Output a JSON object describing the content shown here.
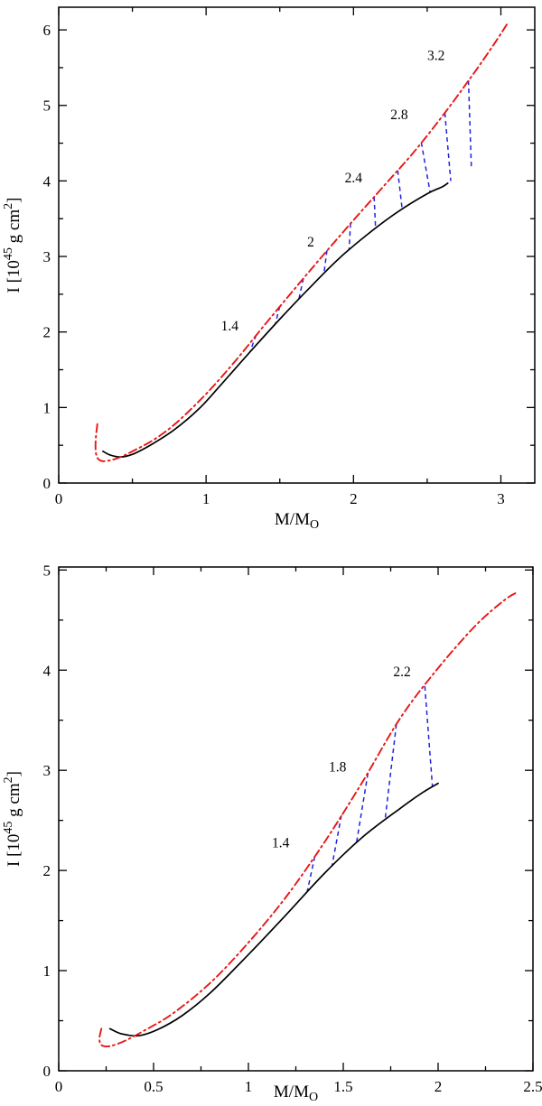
{
  "figure": {
    "description": "Moment of inertia versus mass for non-rotating (solid) and maximally rotating (dash-dot) neutron star sequences, with constant baryon mass connectors (dashed)."
  },
  "chart_data": [
    {
      "type": "line",
      "title": "",
      "xlabel_parts": [
        {
          "t": "M/M"
        },
        {
          "t": "O",
          "sub": true
        }
      ],
      "ylabel_parts": [
        {
          "t": "I [10"
        },
        {
          "t": "45",
          "sup": true
        },
        {
          "t": " g cm"
        },
        {
          "t": "2",
          "sup": true
        },
        {
          "t": "]"
        }
      ],
      "xlim": [
        0,
        3.23
      ],
      "ylim": [
        0,
        6.3
      ],
      "x_ticks": [
        0,
        1,
        2,
        3
      ],
      "x_minor_step": 0.5,
      "y_ticks": [
        0,
        1,
        2,
        3,
        4,
        5,
        6
      ],
      "y_minor_step": 0.5,
      "grid": false,
      "legend": "none",
      "connector_color": "#2222dd",
      "series": [
        {
          "name": "static-sequence",
          "color": "#000000",
          "style": "solid",
          "width": 1.7,
          "points": [
            [
              0.3,
              0.42
            ],
            [
              0.35,
              0.37
            ],
            [
              0.42,
              0.345
            ],
            [
              0.5,
              0.38
            ],
            [
              0.62,
              0.5
            ],
            [
              0.78,
              0.7
            ],
            [
              0.95,
              0.98
            ],
            [
              1.1,
              1.3
            ],
            [
              1.3,
              1.74
            ],
            [
              1.5,
              2.17
            ],
            [
              1.7,
              2.58
            ],
            [
              1.9,
              2.97
            ],
            [
              2.1,
              3.3
            ],
            [
              2.3,
              3.59
            ],
            [
              2.5,
              3.83
            ],
            [
              2.6,
              3.92
            ],
            [
              2.64,
              3.97
            ]
          ]
        },
        {
          "name": "keplerian-sequence",
          "color": "#e81616",
          "style": "dashdot",
          "width": 1.9,
          "points": [
            [
              0.262,
              0.78
            ],
            [
              0.252,
              0.6
            ],
            [
              0.25,
              0.45
            ],
            [
              0.258,
              0.35
            ],
            [
              0.28,
              0.3
            ],
            [
              0.32,
              0.29
            ],
            [
              0.4,
              0.33
            ],
            [
              0.5,
              0.42
            ],
            [
              0.65,
              0.58
            ],
            [
              0.8,
              0.8
            ],
            [
              1.0,
              1.18
            ],
            [
              1.2,
              1.62
            ],
            [
              1.4,
              2.1
            ],
            [
              1.6,
              2.57
            ],
            [
              1.8,
              3.03
            ],
            [
              2.0,
              3.48
            ],
            [
              2.2,
              3.92
            ],
            [
              2.4,
              4.36
            ],
            [
              2.6,
              4.85
            ],
            [
              2.8,
              5.38
            ],
            [
              2.95,
              5.8
            ],
            [
              3.05,
              6.1
            ]
          ]
        }
      ],
      "connectors": [
        {
          "label": "1.4",
          "label_x": 1.16,
          "label_y": 2.02,
          "a": [
            1.34,
            1.96
          ],
          "b": [
            1.3,
            1.75
          ]
        },
        {
          "a": [
            1.5,
            2.34
          ],
          "b": [
            1.47,
            2.11
          ]
        },
        {
          "a": [
            1.66,
            2.71
          ],
          "b": [
            1.63,
            2.44
          ]
        },
        {
          "label": "2",
          "label_x": 1.71,
          "label_y": 3.13,
          "a": [
            1.82,
            3.08
          ],
          "b": [
            1.8,
            2.78
          ]
        },
        {
          "a": [
            1.98,
            3.44
          ],
          "b": [
            1.97,
            3.09
          ]
        },
        {
          "label": "2.4",
          "label_x": 2.0,
          "label_y": 3.98,
          "a": [
            2.14,
            3.79
          ],
          "b": [
            2.15,
            3.37
          ]
        },
        {
          "a": [
            2.3,
            4.14
          ],
          "b": [
            2.33,
            3.63
          ]
        },
        {
          "label": "2.8",
          "label_x": 2.31,
          "label_y": 4.82,
          "a": [
            2.46,
            4.51
          ],
          "b": [
            2.52,
            3.85
          ]
        },
        {
          "a": [
            2.62,
            4.9
          ],
          "b": [
            2.66,
            4.0
          ]
        },
        {
          "label": "3.2",
          "label_x": 2.56,
          "label_y": 5.6,
          "a": [
            2.78,
            5.33
          ],
          "b": [
            2.8,
            4.16
          ]
        }
      ]
    },
    {
      "type": "line",
      "title": "",
      "xlabel_parts": [
        {
          "t": "M/M"
        },
        {
          "t": "O",
          "sub": true
        }
      ],
      "ylabel_parts": [
        {
          "t": "I [10"
        },
        {
          "t": "45",
          "sup": true
        },
        {
          "t": " g cm"
        },
        {
          "t": "2",
          "sup": true
        },
        {
          "t": "]"
        }
      ],
      "xlim": [
        0,
        2.5
      ],
      "ylim": [
        0,
        5.03
      ],
      "x_ticks": [
        0,
        0.5,
        1,
        1.5,
        2,
        2.5
      ],
      "x_minor_step": 0.25,
      "y_ticks": [
        0,
        1,
        2,
        3,
        4,
        5
      ],
      "y_minor_step": 0.5,
      "grid": false,
      "legend": "none",
      "connector_color": "#2222dd",
      "series": [
        {
          "name": "static-sequence",
          "color": "#000000",
          "style": "solid",
          "width": 1.7,
          "points": [
            [
              0.27,
              0.42
            ],
            [
              0.33,
              0.37
            ],
            [
              0.42,
              0.35
            ],
            [
              0.52,
              0.41
            ],
            [
              0.65,
              0.55
            ],
            [
              0.8,
              0.78
            ],
            [
              1.0,
              1.16
            ],
            [
              1.2,
              1.56
            ],
            [
              1.4,
              1.97
            ],
            [
              1.6,
              2.33
            ],
            [
              1.8,
              2.62
            ],
            [
              1.92,
              2.78
            ],
            [
              2.0,
              2.87
            ]
          ]
        },
        {
          "name": "keplerian-sequence",
          "color": "#e81616",
          "style": "dashdot",
          "width": 1.9,
          "points": [
            [
              0.225,
              0.42
            ],
            [
              0.215,
              0.33
            ],
            [
              0.22,
              0.27
            ],
            [
              0.24,
              0.245
            ],
            [
              0.28,
              0.25
            ],
            [
              0.35,
              0.3
            ],
            [
              0.45,
              0.4
            ],
            [
              0.6,
              0.57
            ],
            [
              0.8,
              0.88
            ],
            [
              1.0,
              1.28
            ],
            [
              1.2,
              1.74
            ],
            [
              1.4,
              2.28
            ],
            [
              1.6,
              2.88
            ],
            [
              1.8,
              3.52
            ],
            [
              2.0,
              4.02
            ],
            [
              2.2,
              4.45
            ],
            [
              2.35,
              4.7
            ],
            [
              2.42,
              4.78
            ]
          ]
        }
      ],
      "connectors": [
        {
          "label": "1.4",
          "label_x": 1.17,
          "label_y": 2.23,
          "a": [
            1.35,
            2.14
          ],
          "b": [
            1.31,
            1.79
          ]
        },
        {
          "a": [
            1.49,
            2.55
          ],
          "b": [
            1.44,
            2.04
          ]
        },
        {
          "label": "1.8",
          "label_x": 1.47,
          "label_y": 2.99,
          "a": [
            1.63,
            2.97
          ],
          "b": [
            1.57,
            2.28
          ]
        },
        {
          "a": [
            1.78,
            3.46
          ],
          "b": [
            1.72,
            2.5
          ]
        },
        {
          "label": "2.2",
          "label_x": 1.81,
          "label_y": 3.94,
          "a": [
            1.93,
            3.84
          ],
          "b": [
            1.97,
            2.84
          ]
        }
      ]
    }
  ]
}
